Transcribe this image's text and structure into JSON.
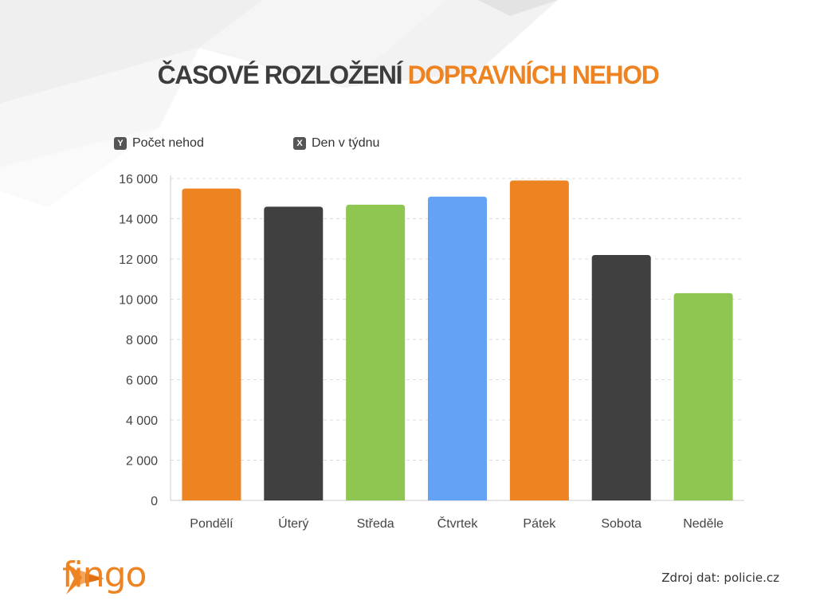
{
  "title": {
    "part1": "ČASOVÉ ROZLOŽENÍ",
    "part2": "DOPRAVNÍCH NEHOD"
  },
  "legend": {
    "y_badge": "Y",
    "y_label": "Počet nehod",
    "x_badge": "X",
    "x_label": "Den v týdnu"
  },
  "source": "Zdroj dat: policie.cz",
  "logo": {
    "text": "fingo"
  },
  "colors": {
    "orange": "#ee8322",
    "dark": "#404040",
    "green": "#8fc551",
    "blue": "#64a2f6"
  },
  "chart_data": {
    "type": "bar",
    "categories": [
      "Pondělí",
      "Úterý",
      "Středa",
      "Čtvrtek",
      "Pátek",
      "Sobota",
      "Neděle"
    ],
    "values": [
      15500,
      14600,
      14700,
      15100,
      15900,
      12200,
      10300
    ],
    "bar_colors": [
      "#ee8322",
      "#404040",
      "#8fc551",
      "#64a2f6",
      "#ee8322",
      "#404040",
      "#8fc551"
    ],
    "ylim": [
      0,
      16000
    ],
    "yticks": [
      0,
      2000,
      4000,
      6000,
      8000,
      10000,
      12000,
      14000,
      16000
    ],
    "ytick_labels": [
      "0",
      "2 000",
      "4 000",
      "6 000",
      "8 000",
      "10 000",
      "12 000",
      "14 000",
      "16 000"
    ],
    "grid": true,
    "xlabel": "Den v týdnu",
    "ylabel": "Počet nehod"
  }
}
